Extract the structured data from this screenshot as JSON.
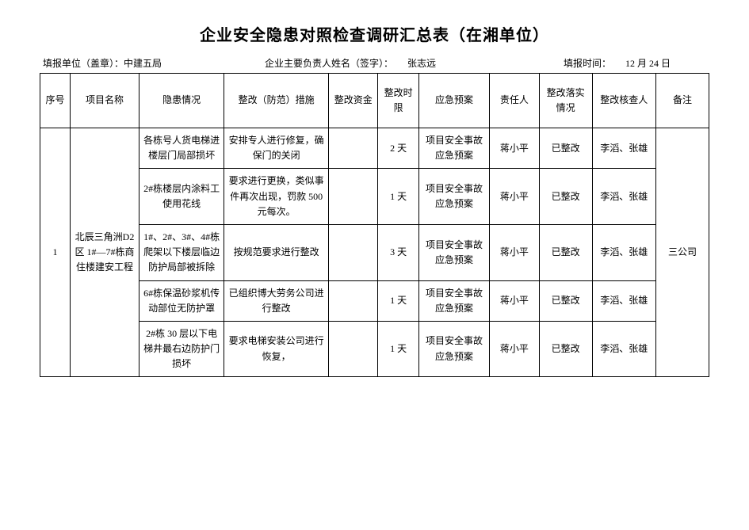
{
  "title": "企业安全隐患对照检查调研汇总表（在湘单位）",
  "meta": {
    "unit_label": "填报单位（盖章）：",
    "unit_value": "中建五局",
    "leader_label": "企业主要负责人姓名（签字）：",
    "leader_value": "张志远",
    "date_label": "填报时间：",
    "date_value": "12 月 24 日"
  },
  "headers": {
    "seq": "序号",
    "project": "项目名称",
    "hazard": "隐患情况",
    "measure": "整改（防范）措施",
    "fund": "整改资金",
    "deadline": "整改时限",
    "plan": "应急预案",
    "responsible": "责任人",
    "impl": "整改落实情况",
    "checker": "整改核查人",
    "note": "备注"
  },
  "group": {
    "seq": "1",
    "project": "北辰三角洲D2 区 1#—7#栋商住楼建安工程",
    "note": "三公司"
  },
  "rows": [
    {
      "hazard": "各栋号人货电梯进楼层门局部损坏",
      "measure": "安排专人进行修复，确保门的关闭",
      "fund": "",
      "deadline": "2 天",
      "plan": "项目安全事故应急预案",
      "responsible": "蒋小平",
      "impl": "已整改",
      "checker": "李滔、张雄"
    },
    {
      "hazard": "2#栋楼层内涂料工使用花线",
      "measure": "要求进行更换，类似事件再次出现，罚款 500 元每次。",
      "fund": "",
      "deadline": "1 天",
      "plan": "项目安全事故应急预案",
      "responsible": "蒋小平",
      "impl": "已整改",
      "checker": "李滔、张雄"
    },
    {
      "hazard": "1#、2#、3#、4#栋爬架以下楼层临边防护局部被拆除",
      "measure": "按规范要求进行整改",
      "fund": "",
      "deadline": "3 天",
      "plan": "项目安全事故应急预案",
      "responsible": "蒋小平",
      "impl": "已整改",
      "checker": "李滔、张雄"
    },
    {
      "hazard": "6#栋保温砂浆机传动部位无防护罩",
      "measure": "已组织博大劳务公司进行整改",
      "fund": "",
      "deadline": "1 天",
      "plan": "项目安全事故应急预案",
      "responsible": "蒋小平",
      "impl": "已整改",
      "checker": "李滔、张雄"
    },
    {
      "hazard": "2#栋 30 层以下电梯井最右边防护门损坏",
      "measure": "要求电梯安装公司进行恢复，",
      "fund": "",
      "deadline": "1 天",
      "plan": "项目安全事故应急预案",
      "responsible": "蒋小平",
      "impl": "已整改",
      "checker": "李滔、张雄"
    }
  ]
}
